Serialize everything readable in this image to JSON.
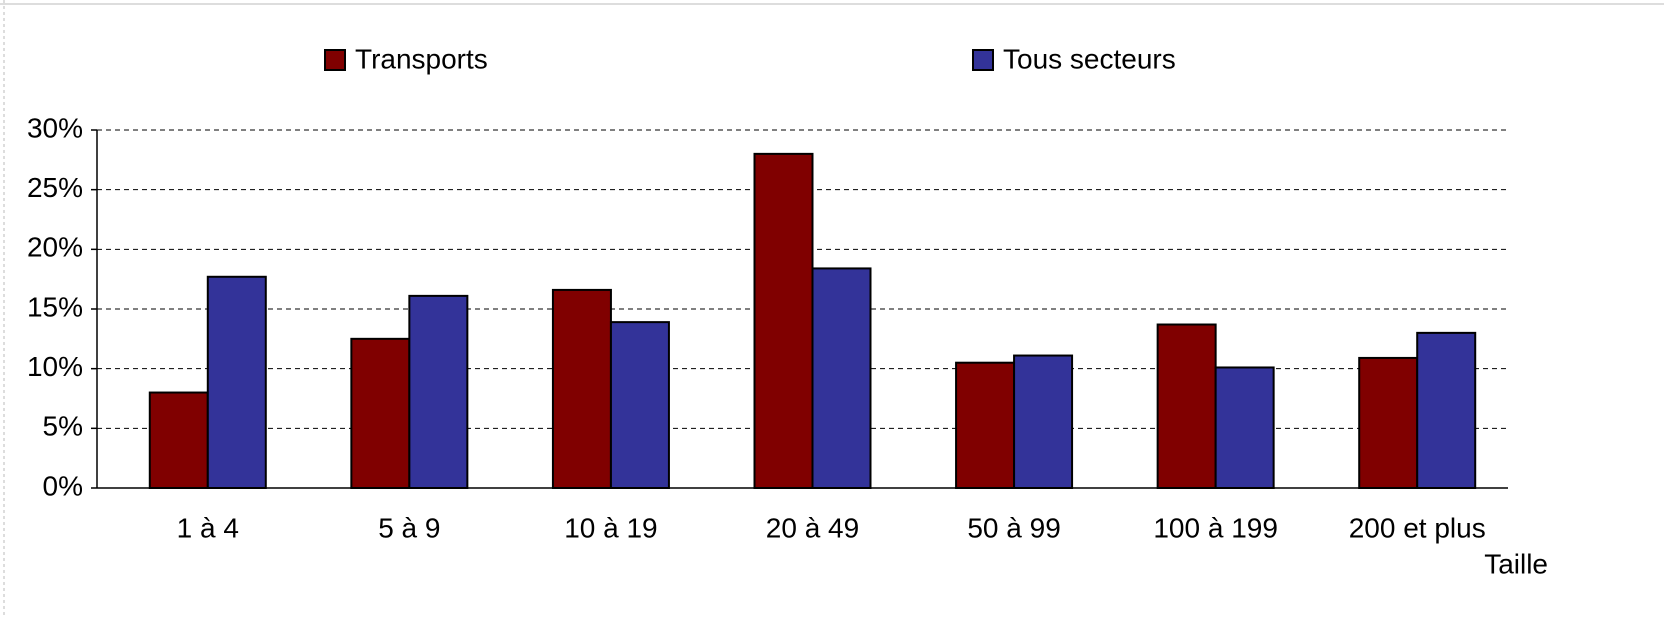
{
  "chart_data": {
    "type": "bar",
    "categories": [
      "1 à 4",
      "5 à 9",
      "10 à 19",
      "20 à 49",
      "50 à 99",
      "100 à 199",
      "200 et plus"
    ],
    "series": [
      {
        "name": "Transports",
        "color": "#800000",
        "values": [
          8,
          12.5,
          16.6,
          28,
          10.5,
          13.7,
          10.9
        ]
      },
      {
        "name": "Tous secteurs",
        "color": "#333399",
        "values": [
          17.7,
          16.1,
          13.9,
          18.4,
          11.1,
          10.1,
          13
        ]
      }
    ],
    "x_label": "Taille",
    "ylim": [
      0,
      30
    ],
    "yticks": [
      {
        "value": 0,
        "label": "0%"
      },
      {
        "value": 5,
        "label": "5%"
      },
      {
        "value": 10,
        "label": "10%"
      },
      {
        "value": 15,
        "label": "15%"
      },
      {
        "value": 20,
        "label": "20%"
      },
      {
        "value": 25,
        "label": "25%"
      },
      {
        "value": 30,
        "label": "30%"
      }
    ],
    "grid": true,
    "legend": "top"
  }
}
